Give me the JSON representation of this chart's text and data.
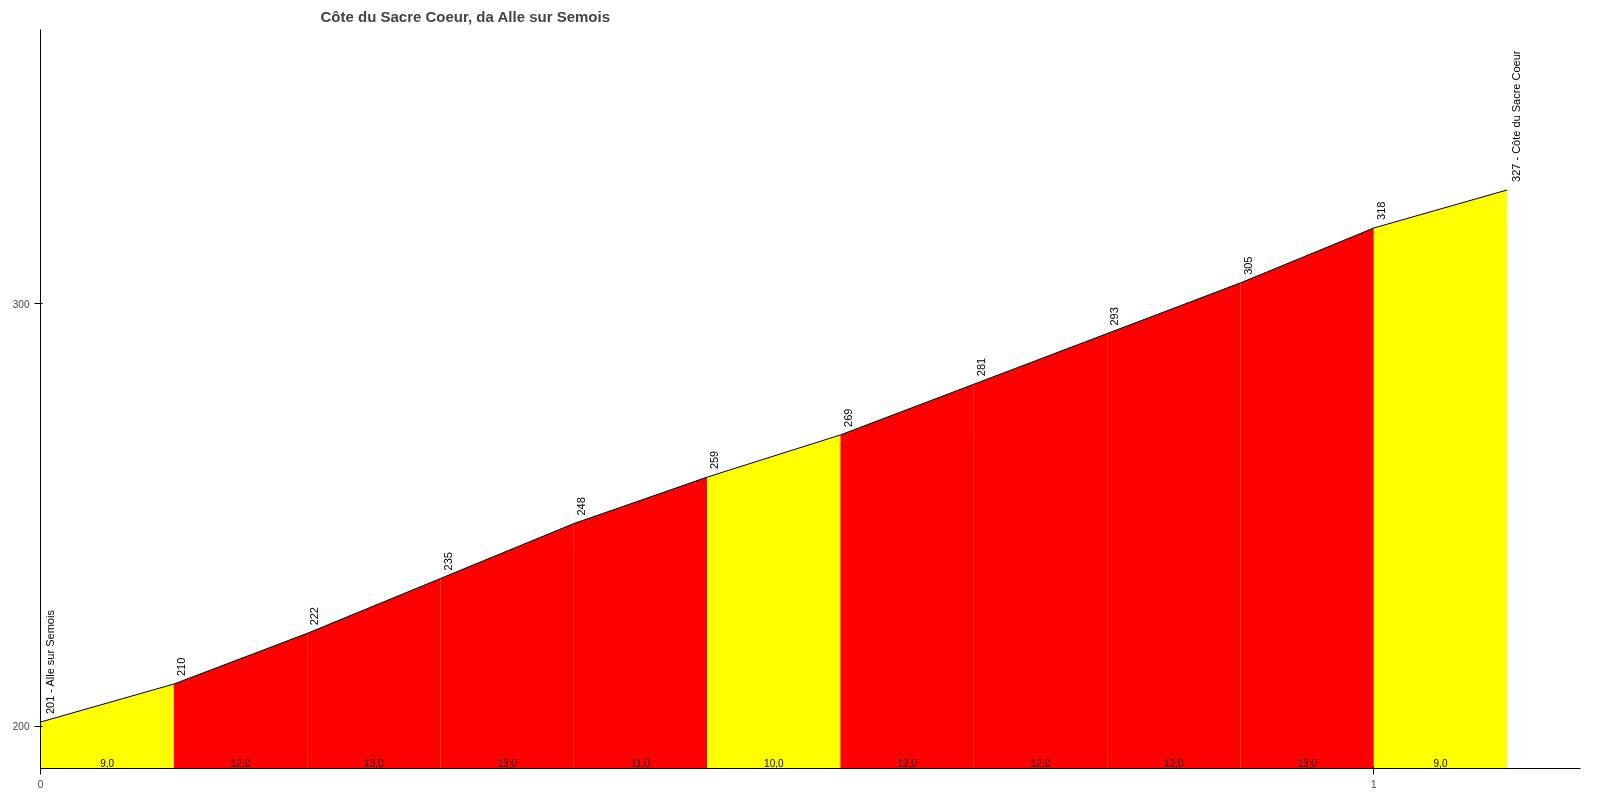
{
  "chart_data": {
    "type": "area",
    "title": "Côte du Sacre Coeur, da Alle sur Semois",
    "xlim": [
      0,
      1.155
    ],
    "xticks": [
      0,
      1
    ],
    "ylim": [
      190,
      365
    ],
    "yticks": [
      200,
      300
    ],
    "grid": false,
    "series": [
      {
        "color": "#ffff00",
        "x": [
          0,
          0.1
        ],
        "values": [
          201,
          210
        ]
      },
      {
        "color": "#ff0000",
        "x": [
          0.1,
          0.2
        ],
        "values": [
          210,
          222
        ]
      },
      {
        "color": "#ff0000",
        "x": [
          0.2,
          0.3
        ],
        "values": [
          222,
          235
        ]
      },
      {
        "color": "#ff0000",
        "x": [
          0.3,
          0.4
        ],
        "values": [
          235,
          248
        ]
      },
      {
        "color": "#ff0000",
        "x": [
          0.4,
          0.5
        ],
        "values": [
          248,
          259
        ]
      },
      {
        "color": "#ffff00",
        "x": [
          0.5,
          0.6
        ],
        "values": [
          259,
          269
        ]
      },
      {
        "color": "#ff0000",
        "x": [
          0.6,
          0.7
        ],
        "values": [
          269,
          281
        ]
      },
      {
        "color": "#ff0000",
        "x": [
          0.7,
          0.8
        ],
        "values": [
          281,
          293
        ]
      },
      {
        "color": "#ff0000",
        "x": [
          0.8,
          0.9
        ],
        "values": [
          293,
          305
        ]
      },
      {
        "color": "#ff0000",
        "x": [
          0.9,
          1.0
        ],
        "values": [
          305,
          318
        ]
      },
      {
        "color": "#ffff00",
        "x": [
          1.0,
          1.1
        ],
        "values": [
          318,
          327
        ]
      },
      {
        "type": "line",
        "color": "#000000",
        "x": [
          0,
          0.1,
          0.2,
          0.3,
          0.4,
          0.5,
          0.6,
          0.7,
          0.8,
          0.9,
          1.0,
          1.1
        ],
        "values": [
          201,
          210,
          222,
          235,
          248,
          259,
          269,
          281,
          293,
          305,
          318,
          327
        ],
        "value_labels": [
          "201 - Alle sur Semois",
          "210",
          "222",
          "235",
          "248",
          "259",
          "269",
          "281",
          "293",
          "305",
          "318",
          "327 - Côte du Sacre Coeur"
        ]
      }
    ],
    "annotations": [
      "9,0",
      "12,0",
      "13,0",
      "13,0",
      "11,0",
      "10,0",
      "12,0",
      "12,0",
      "12,0",
      "13,0",
      "9,0"
    ]
  }
}
